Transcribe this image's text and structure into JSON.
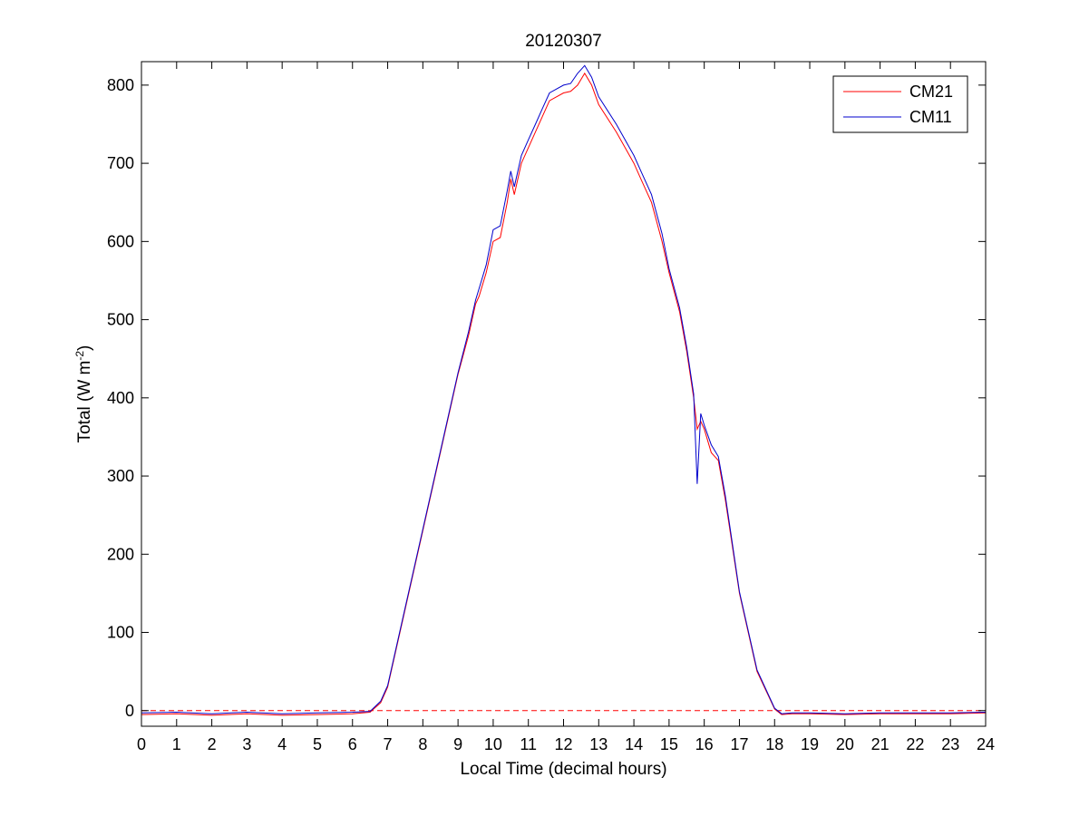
{
  "chart_data": {
    "type": "line",
    "title": "20120307",
    "xlabel": "Local Time (decimal hours)",
    "ylabel": "Total (W m^-2)",
    "ylabel_parts": {
      "main": "Total (W m",
      "sup": "-2",
      "close": ")"
    },
    "xlim": [
      0,
      24
    ],
    "ylim": [
      -20,
      830
    ],
    "xticks": [
      0,
      1,
      2,
      3,
      4,
      5,
      6,
      7,
      8,
      9,
      10,
      11,
      12,
      13,
      14,
      15,
      16,
      17,
      18,
      19,
      20,
      21,
      22,
      23,
      24
    ],
    "yticks": [
      0,
      100,
      200,
      300,
      400,
      500,
      600,
      700,
      800
    ],
    "grid": false,
    "legend_position": "top-right",
    "reference_line": {
      "y": 0,
      "style": "dashed",
      "color": "#ff0000"
    },
    "series": [
      {
        "name": "CM21",
        "color": "#ff0000",
        "x": [
          0,
          1,
          2,
          3,
          4,
          5,
          6,
          6.5,
          6.8,
          7,
          7.5,
          8,
          8.5,
          9,
          9.3,
          9.5,
          9.6,
          9.8,
          10,
          10.2,
          10.4,
          10.5,
          10.6,
          10.8,
          11,
          11.2,
          11.4,
          11.6,
          11.8,
          12,
          12.2,
          12.4,
          12.6,
          12.8,
          13,
          13.5,
          14,
          14.2,
          14.5,
          14.8,
          15,
          15.3,
          15.5,
          15.7,
          15.8,
          15.9,
          16,
          16.2,
          16.4,
          16.6,
          17,
          17.5,
          18,
          18.2,
          18.5,
          19,
          20,
          21,
          22,
          23,
          24
        ],
        "y": [
          -5,
          -4,
          -6,
          -4,
          -6,
          -5,
          -4,
          -2,
          10,
          30,
          130,
          230,
          330,
          430,
          480,
          520,
          530,
          560,
          600,
          605,
          650,
          680,
          660,
          700,
          720,
          740,
          760,
          780,
          785,
          790,
          792,
          800,
          815,
          800,
          775,
          740,
          700,
          680,
          650,
          600,
          560,
          510,
          460,
          400,
          360,
          370,
          360,
          330,
          320,
          270,
          150,
          50,
          2,
          -5,
          -4,
          -4,
          -5,
          -4,
          -4,
          -4,
          -3
        ]
      },
      {
        "name": "CM11",
        "color": "#0000cc",
        "x": [
          0,
          1,
          2,
          3,
          4,
          5,
          6,
          6.5,
          6.8,
          7,
          7.5,
          8,
          8.5,
          9,
          9.3,
          9.5,
          9.6,
          9.8,
          10,
          10.2,
          10.4,
          10.5,
          10.6,
          10.8,
          11,
          11.2,
          11.4,
          11.6,
          11.8,
          12,
          12.2,
          12.4,
          12.6,
          12.8,
          13,
          13.5,
          14,
          14.2,
          14.5,
          14.8,
          15,
          15.3,
          15.5,
          15.7,
          15.8,
          15.9,
          16,
          16.2,
          16.4,
          16.6,
          17,
          17.5,
          18,
          18.2,
          18.5,
          19,
          20,
          21,
          22,
          23,
          24
        ],
        "y": [
          -3,
          -2,
          -4,
          -2,
          -4,
          -3,
          -2,
          -1,
          12,
          32,
          132,
          232,
          332,
          432,
          485,
          525,
          540,
          570,
          615,
          620,
          665,
          690,
          670,
          710,
          730,
          750,
          770,
          790,
          795,
          800,
          802,
          815,
          825,
          810,
          785,
          750,
          710,
          690,
          660,
          610,
          565,
          515,
          465,
          405,
          290,
          380,
          365,
          340,
          325,
          275,
          152,
          52,
          3,
          -4,
          -3,
          -3,
          -4,
          -3,
          -3,
          -3,
          -2
        ]
      }
    ]
  }
}
